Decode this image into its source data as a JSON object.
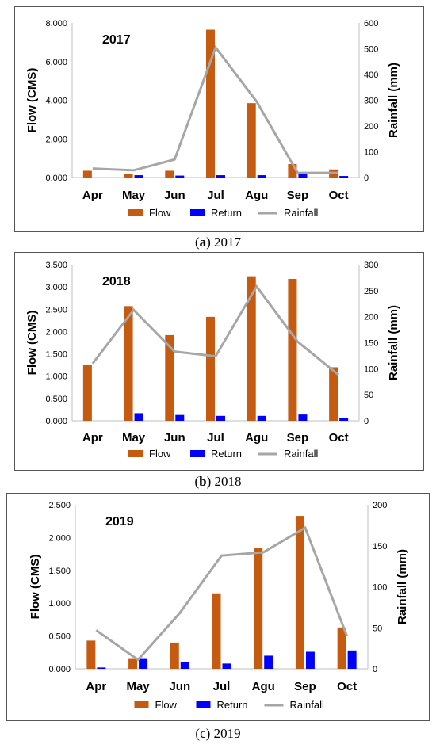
{
  "colors": {
    "flow": "#c55a11",
    "return": "#0000ff",
    "rainfall": "#a6a6a6"
  },
  "chart_data": [
    {
      "type": "bar",
      "title": "2017",
      "caption": {
        "letter": "a",
        "text": "2017"
      },
      "categories": [
        "Apr",
        "May",
        "Jun",
        "Jul",
        "Agu",
        "Sep",
        "Oct"
      ],
      "ylabel": "Flow (CMS)",
      "y2label": "Rainfall (mm)",
      "ylim": [
        0,
        8
      ],
      "y2lim": [
        0,
        600
      ],
      "yticks": [
        "0.000",
        "2.000",
        "4.000",
        "6.000",
        "8.000"
      ],
      "y2ticks": [
        "0",
        "100",
        "200",
        "300",
        "400",
        "500",
        "600"
      ],
      "legend": [
        "Flow",
        "Return",
        "Rainfall"
      ],
      "legend_position": "bottom",
      "series": [
        {
          "name": "Flow",
          "type": "bar",
          "values": [
            0.35,
            0.18,
            0.35,
            7.65,
            3.85,
            0.7,
            0.42
          ]
        },
        {
          "name": "Return",
          "type": "bar",
          "values": [
            0.0,
            0.12,
            0.1,
            0.12,
            0.12,
            0.2,
            0.08
          ]
        },
        {
          "name": "Rainfall",
          "type": "line",
          "axis": "right",
          "values": [
            35,
            28,
            70,
            505,
            295,
            18,
            18
          ]
        }
      ]
    },
    {
      "type": "bar",
      "title": "2018",
      "caption": {
        "letter": "b",
        "text": "2018"
      },
      "categories": [
        "Apr",
        "May",
        "Jun",
        "Jul",
        "Agu",
        "Sep",
        "Oct"
      ],
      "ylabel": "Flow (CMS)",
      "y2label": "Rainfall (mm)",
      "ylim": [
        0,
        3.5
      ],
      "y2lim": [
        0,
        300
      ],
      "yticks": [
        "0.000",
        "0.500",
        "1.000",
        "1.500",
        "2.000",
        "2.500",
        "3.000",
        "3.500"
      ],
      "y2ticks": [
        "0",
        "50",
        "100",
        "150",
        "200",
        "250",
        "300"
      ],
      "legend": [
        "Flow",
        "Return",
        "Rainfall"
      ],
      "legend_position": "bottom",
      "series": [
        {
          "name": "Flow",
          "type": "bar",
          "values": [
            1.25,
            2.57,
            1.92,
            2.33,
            3.24,
            3.18,
            1.2
          ]
        },
        {
          "name": "Return",
          "type": "bar",
          "values": [
            0.0,
            0.17,
            0.13,
            0.11,
            0.11,
            0.14,
            0.07
          ]
        },
        {
          "name": "Rainfall",
          "type": "line",
          "axis": "right",
          "values": [
            110,
            213,
            133,
            124,
            258,
            152,
            88
          ]
        }
      ]
    },
    {
      "type": "bar",
      "title": "2019",
      "caption": {
        "letter": "c",
        "text": "2019"
      },
      "categories": [
        "Apr",
        "May",
        "Jun",
        "Jul",
        "Agu",
        "Sep",
        "Oct"
      ],
      "ylabel": "Flow (CMS)",
      "y2label": "Rainfall (mm)",
      "ylim": [
        0,
        2.5
      ],
      "y2lim": [
        0,
        200
      ],
      "yticks": [
        "0.000",
        "0.500",
        "1.000",
        "1.500",
        "2.000",
        "2.500"
      ],
      "y2ticks": [
        "0",
        "50",
        "100",
        "150",
        "200"
      ],
      "legend": [
        "Flow",
        "Return",
        "Rainfall"
      ],
      "legend_position": "bottom",
      "series": [
        {
          "name": "Flow",
          "type": "bar",
          "values": [
            0.43,
            0.15,
            0.4,
            1.15,
            1.84,
            2.33,
            0.63
          ]
        },
        {
          "name": "Return",
          "type": "bar",
          "values": [
            0.02,
            0.15,
            0.1,
            0.08,
            0.2,
            0.26,
            0.28
          ]
        },
        {
          "name": "Rainfall",
          "type": "line",
          "axis": "right",
          "values": [
            47,
            11,
            68,
            138,
            142,
            172,
            40
          ]
        }
      ]
    }
  ]
}
